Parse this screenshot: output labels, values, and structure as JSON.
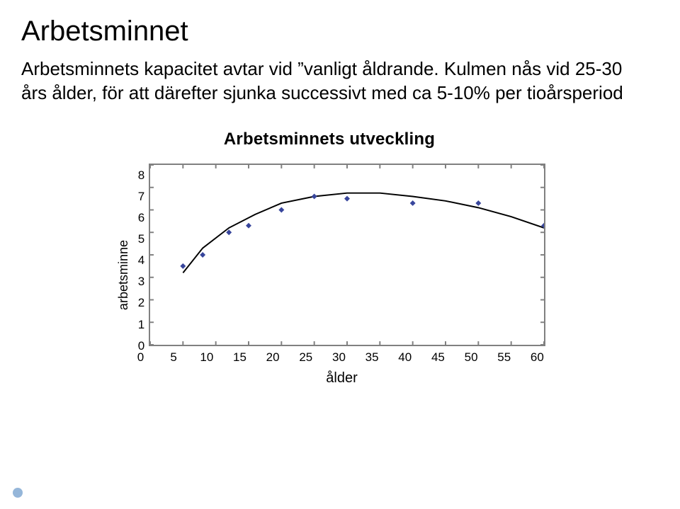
{
  "title": "Arbetsminnet",
  "body_text": "Arbetsminnets kapacitet avtar vid ”vanligt åldrande. Kulmen nås vid 25-30 års ålder, för att därefter sjunka successivt med ca 5-10% per tioårsperiod",
  "chart": {
    "title": "Arbetsminnets utveckling",
    "type": "scatter-line",
    "xlabel": "ålder",
    "ylabel": "arbetsminne",
    "xlim": [
      0,
      60
    ],
    "ylim": [
      0,
      8
    ],
    "xtick_step": 5,
    "ytick_step": 1,
    "x_ticks": [
      "0",
      "5",
      "10",
      "15",
      "20",
      "25",
      "30",
      "35",
      "40",
      "45",
      "50",
      "55",
      "60"
    ],
    "y_ticks": [
      "8",
      "7",
      "6",
      "5",
      "4",
      "3",
      "2",
      "1",
      "0"
    ],
    "line_color": "#000000",
    "line_width": 2,
    "marker_color": "#38469c",
    "marker_shape": "diamond",
    "marker_size": 8,
    "border_color": "#808080",
    "background_color": "#ffffff",
    "label_fontsize": 18,
    "tick_fontsize": 17,
    "title_fontsize": 24,
    "points": [
      {
        "x": 5,
        "y": 3.5
      },
      {
        "x": 8,
        "y": 4.0
      },
      {
        "x": 12,
        "y": 5.0
      },
      {
        "x": 15,
        "y": 5.3
      },
      {
        "x": 20,
        "y": 6.0
      },
      {
        "x": 25,
        "y": 6.6
      },
      {
        "x": 30,
        "y": 6.5
      },
      {
        "x": 40,
        "y": 6.3
      },
      {
        "x": 50,
        "y": 6.3
      },
      {
        "x": 60,
        "y": 5.3
      }
    ],
    "curve": [
      {
        "x": 5,
        "y": 3.2
      },
      {
        "x": 8,
        "y": 4.3
      },
      {
        "x": 12,
        "y": 5.2
      },
      {
        "x": 16,
        "y": 5.8
      },
      {
        "x": 20,
        "y": 6.3
      },
      {
        "x": 25,
        "y": 6.6
      },
      {
        "x": 30,
        "y": 6.75
      },
      {
        "x": 35,
        "y": 6.75
      },
      {
        "x": 40,
        "y": 6.6
      },
      {
        "x": 45,
        "y": 6.4
      },
      {
        "x": 50,
        "y": 6.1
      },
      {
        "x": 55,
        "y": 5.7
      },
      {
        "x": 60,
        "y": 5.2
      }
    ]
  }
}
